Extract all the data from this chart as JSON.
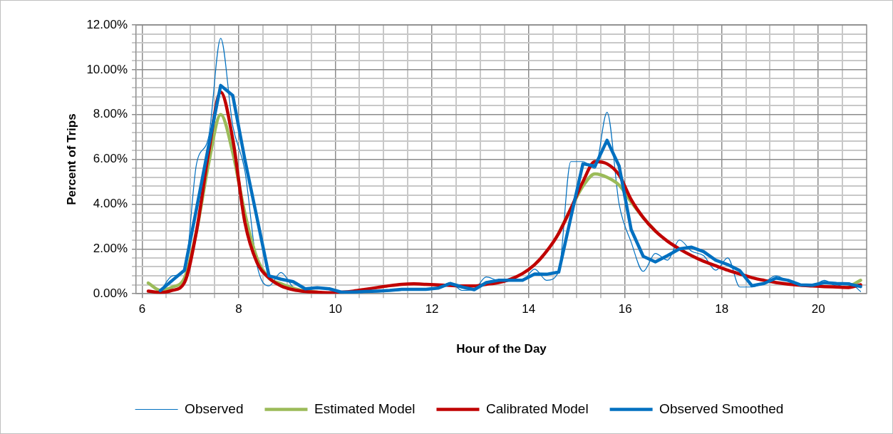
{
  "chart_data": {
    "type": "line",
    "xlabel": "Hour of the Day",
    "ylabel": "Percent of Trips",
    "x": [
      6.125,
      6.375,
      6.625,
      6.875,
      7.125,
      7.375,
      7.625,
      7.875,
      8.125,
      8.375,
      8.625,
      8.875,
      9.125,
      9.375,
      9.625,
      9.875,
      10.125,
      10.375,
      10.625,
      10.875,
      11.125,
      11.375,
      11.625,
      11.875,
      12.125,
      12.375,
      12.625,
      12.875,
      13.125,
      13.375,
      13.625,
      13.875,
      14.125,
      14.375,
      14.625,
      14.875,
      15.125,
      15.375,
      15.625,
      15.875,
      16.125,
      16.375,
      16.625,
      16.875,
      17.125,
      17.375,
      17.625,
      17.875,
      18.125,
      18.375,
      18.625,
      18.875,
      19.125,
      19.375,
      19.625,
      19.875,
      20.125,
      20.375,
      20.625,
      20.875
    ],
    "series": [
      {
        "name": "Observed",
        "color": "#0070c0",
        "values": [
          null,
          0.1,
          0.8,
          1.0,
          5.8,
          7.0,
          11.4,
          7.5,
          5.5,
          1.3,
          0.35,
          0.95,
          0.3,
          0.15,
          0.25,
          0.2,
          0.05,
          0.08,
          0.08,
          0.1,
          0.12,
          0.15,
          0.18,
          0.2,
          0.25,
          0.5,
          0.15,
          0.2,
          0.75,
          0.6,
          0.6,
          0.6,
          1.1,
          0.6,
          1.0,
          5.9,
          5.9,
          5.6,
          8.1,
          4.0,
          2.3,
          1.0,
          1.8,
          1.5,
          2.4,
          1.9,
          1.7,
          1.05,
          1.6,
          0.3,
          0.3,
          0.5,
          0.8,
          0.55,
          0.4,
          0.35,
          0.6,
          0.35,
          0.5,
          0.1
        ]
      },
      {
        "name": "Estimated Model",
        "color": "#9bbb59",
        "values": [
          0.48,
          0.15,
          0.3,
          0.7,
          2.8,
          5.8,
          8.0,
          6.3,
          3.6,
          1.6,
          0.7,
          0.45,
          0.25,
          0.12,
          0.07,
          null,
          null,
          null,
          null,
          null,
          null,
          null,
          null,
          null,
          null,
          null,
          null,
          null,
          null,
          null,
          null,
          null,
          null,
          null,
          2.7,
          3.8,
          4.8,
          5.35,
          5.2,
          4.85,
          4.1,
          3.4,
          2.8,
          null,
          null,
          null,
          null,
          null,
          null,
          null,
          null,
          null,
          null,
          null,
          null,
          null,
          null,
          null,
          0.3,
          0.6
        ]
      },
      {
        "name": "Calibrated Model",
        "color": "#c00000",
        "values": [
          0.12,
          0.05,
          0.15,
          0.5,
          2.8,
          6.3,
          9.0,
          6.9,
          3.2,
          1.4,
          0.7,
          0.35,
          0.18,
          0.1,
          0.07,
          0.05,
          0.07,
          0.12,
          0.2,
          0.28,
          0.36,
          0.42,
          0.44,
          0.42,
          0.4,
          0.37,
          0.35,
          0.35,
          0.42,
          0.5,
          0.65,
          0.9,
          1.3,
          1.9,
          2.7,
          3.8,
          5.0,
          5.9,
          5.8,
          5.3,
          4.2,
          3.4,
          2.8,
          2.35,
          2.0,
          1.7,
          1.45,
          1.25,
          1.05,
          0.88,
          0.72,
          0.6,
          0.5,
          0.43,
          0.38,
          0.35,
          0.32,
          0.3,
          0.28,
          0.4
        ]
      },
      {
        "name": "Observed Smoothed",
        "color": "#0070c0",
        "values": [
          null,
          0.14,
          0.6,
          1.05,
          3.8,
          6.6,
          9.3,
          8.85,
          6.0,
          3.4,
          0.8,
          0.65,
          0.54,
          0.22,
          0.27,
          0.22,
          0.07,
          0.08,
          0.1,
          0.12,
          0.15,
          0.2,
          0.2,
          0.2,
          0.25,
          0.46,
          0.3,
          0.18,
          0.5,
          0.6,
          0.6,
          0.6,
          0.88,
          0.87,
          0.97,
          3.4,
          5.8,
          5.7,
          6.85,
          5.7,
          2.86,
          1.67,
          1.42,
          1.7,
          2.0,
          2.08,
          1.88,
          1.5,
          1.3,
          1.03,
          0.36,
          0.46,
          0.7,
          0.6,
          0.4,
          0.38,
          0.5,
          0.46,
          0.44,
          0.32
        ]
      }
    ],
    "xlim": [
      5.875,
      21
    ],
    "xticks": [
      6,
      {
        "value": 6.5,
        "label": null
      },
      {
        "value": 7,
        "label": null
      },
      {
        "value": 7.5,
        "label": null
      },
      8,
      {
        "value": 8.5,
        "label": null
      },
      {
        "value": 9,
        "label": null
      },
      {
        "value": 9.5,
        "label": null
      },
      10,
      {
        "value": 10.5,
        "label": null
      },
      {
        "value": 11,
        "label": null
      },
      {
        "value": 11.5,
        "label": null
      },
      12,
      {
        "value": 12.5,
        "label": null
      },
      {
        "value": 13,
        "label": null
      },
      {
        "value": 13.5,
        "label": null
      },
      14,
      {
        "value": 14.5,
        "label": null
      },
      {
        "value": 15,
        "label": null
      },
      {
        "value": 15.5,
        "label": null
      },
      16,
      {
        "value": 16.5,
        "label": null
      },
      {
        "value": 17,
        "label": null
      },
      {
        "value": 17.5,
        "label": null
      },
      18,
      {
        "value": 18.5,
        "label": null
      },
      {
        "value": 19,
        "label": null
      },
      {
        "value": 19.5,
        "label": null
      },
      20,
      {
        "value": 20.5,
        "label": null
      }
    ],
    "ylim": [
      0,
      12
    ],
    "yticks": [
      {
        "value": 0,
        "label": "0.00%"
      },
      {
        "value": 0.4,
        "label": null
      },
      {
        "value": 0.8,
        "label": null
      },
      {
        "value": 1.2,
        "label": null
      },
      {
        "value": 1.6,
        "label": null
      },
      {
        "value": 2,
        "label": "2.00%"
      },
      {
        "value": 2.4,
        "label": null
      },
      {
        "value": 2.8,
        "label": null
      },
      {
        "value": 3.2,
        "label": null
      },
      {
        "value": 3.6,
        "label": null
      },
      {
        "value": 4,
        "label": "4.00%"
      },
      {
        "value": 4.4,
        "label": null
      },
      {
        "value": 4.8,
        "label": null
      },
      {
        "value": 5.2,
        "label": null
      },
      {
        "value": 5.6,
        "label": null
      },
      {
        "value": 6,
        "label": "6.00%"
      },
      {
        "value": 6.4,
        "label": null
      },
      {
        "value": 6.8,
        "label": null
      },
      {
        "value": 7.2,
        "label": null
      },
      {
        "value": 7.6,
        "label": null
      },
      {
        "value": 8,
        "label": "8.00%"
      },
      {
        "value": 8.4,
        "label": null
      },
      {
        "value": 8.8,
        "label": null
      },
      {
        "value": 9.2,
        "label": null
      },
      {
        "value": 9.6,
        "label": null
      },
      {
        "value": 10,
        "label": "10.00%"
      },
      {
        "value": 10.4,
        "label": null
      },
      {
        "value": 10.8,
        "label": null
      },
      {
        "value": 11.2,
        "label": null
      },
      {
        "value": 11.6,
        "label": null
      },
      {
        "value": 12,
        "label": "12.00%"
      }
    ],
    "grid": true,
    "legend": "bottom",
    "marker": "none",
    "line_style": "solid"
  }
}
